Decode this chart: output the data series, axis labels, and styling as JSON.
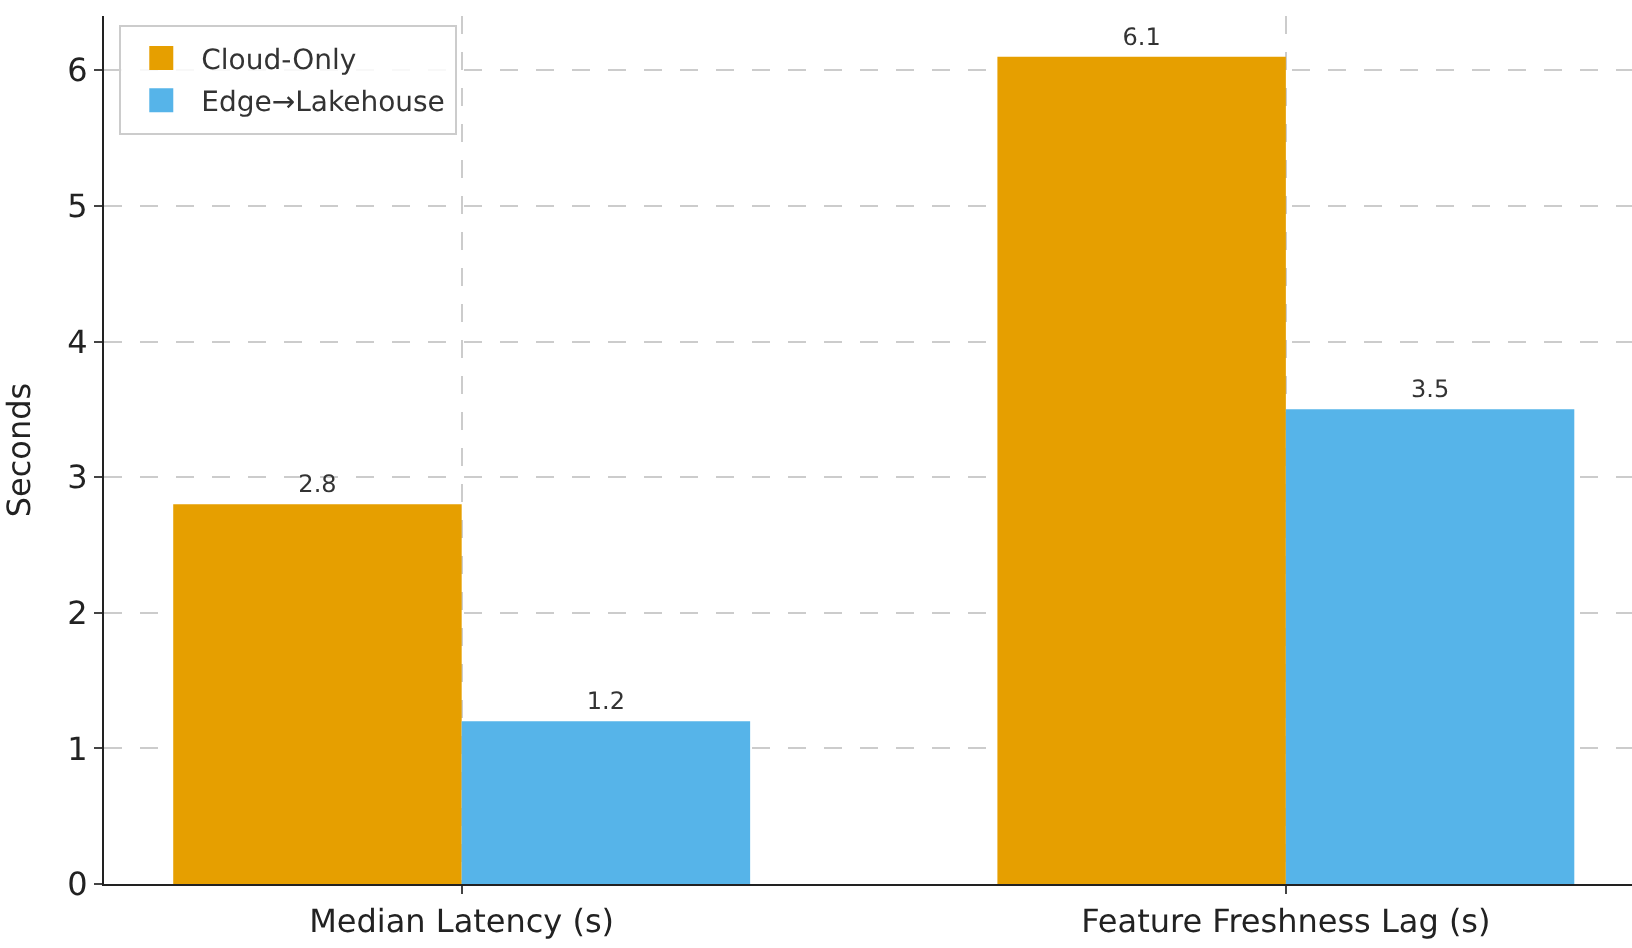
{
  "chart_data": {
    "type": "bar",
    "ylabel": "Seconds",
    "categories": [
      "Median Latency (s)",
      "Feature Freshness Lag (s)"
    ],
    "series": [
      {
        "name": "Cloud-Only",
        "color": "#e69f00",
        "values": [
          2.8,
          6.1
        ]
      },
      {
        "name": "Edge→Lakehouse",
        "color": "#56b4e9",
        "values": [
          1.2,
          3.5
        ]
      }
    ],
    "ylim": [
      0,
      6.4
    ],
    "yticks": [
      0,
      1,
      2,
      3,
      4,
      5,
      6
    ],
    "grid": true,
    "legend": "top left",
    "data_labels": true
  }
}
